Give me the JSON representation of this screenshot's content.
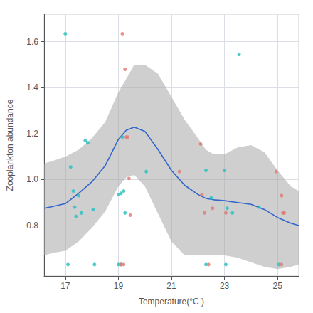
{
  "chart_data": {
    "type": "scatter",
    "xlabel": "Temperature(°C )",
    "ylabel": "Zooplankton abundance",
    "xlim": [
      16.2,
      25.8
    ],
    "ylim": [
      0.58,
      1.72
    ],
    "xticks": [
      17,
      19,
      21,
      23,
      25
    ],
    "yticks": [
      0.8,
      {
        "value": 1.0,
        "label": "1.0"
      },
      1.2,
      1.4,
      1.6
    ],
    "grid": true,
    "series": [
      {
        "type": "band",
        "color": "#a8a8a8",
        "x": [
          16.2,
          16.5,
          17.0,
          17.5,
          18.0,
          18.5,
          19.0,
          19.3,
          19.6,
          20.0,
          20.5,
          21.0,
          21.5,
          22.0,
          22.3,
          22.6,
          23.0,
          23.5,
          24.0,
          24.5,
          25.0,
          25.5,
          25.8
        ],
        "lower": [
          0.67,
          0.68,
          0.69,
          0.73,
          0.79,
          0.86,
          0.97,
          1.01,
          1.02,
          0.97,
          0.85,
          0.73,
          0.67,
          0.67,
          0.67,
          0.67,
          0.67,
          0.66,
          0.64,
          0.62,
          0.61,
          0.62,
          0.63
        ],
        "upper": [
          1.07,
          1.08,
          1.1,
          1.13,
          1.18,
          1.25,
          1.38,
          1.44,
          1.5,
          1.5,
          1.46,
          1.36,
          1.26,
          1.18,
          1.13,
          1.11,
          1.11,
          1.14,
          1.15,
          1.12,
          1.04,
          0.97,
          0.95
        ]
      },
      {
        "type": "line",
        "color": "#3366cc",
        "x": [
          16.2,
          16.5,
          17.0,
          17.5,
          18.0,
          18.5,
          19.0,
          19.3,
          19.6,
          20.0,
          20.5,
          21.0,
          21.5,
          22.0,
          22.3,
          22.6,
          23.0,
          23.5,
          24.0,
          24.5,
          25.0,
          25.5,
          25.8
        ],
        "values": [
          0.875,
          0.882,
          0.895,
          0.94,
          0.99,
          1.06,
          1.175,
          1.215,
          1.228,
          1.21,
          1.13,
          1.04,
          0.975,
          0.935,
          0.918,
          0.912,
          0.908,
          0.9,
          0.892,
          0.87,
          0.835,
          0.81,
          0.8
        ]
      },
      {
        "type": "scatter",
        "color": "#26bfbf",
        "points": [
          [
            17.0,
            1.635
          ],
          [
            17.2,
            1.055
          ],
          [
            17.3,
            0.95
          ],
          [
            17.35,
            0.88
          ],
          [
            17.4,
            0.84
          ],
          [
            17.5,
            0.93
          ],
          [
            17.6,
            0.855
          ],
          [
            17.75,
            1.17
          ],
          [
            17.85,
            1.16
          ],
          [
            18.05,
            0.87
          ],
          [
            19.0,
            0.935
          ],
          [
            19.1,
            0.94
          ],
          [
            19.15,
            1.185
          ],
          [
            19.2,
            0.95
          ],
          [
            19.25,
            0.855
          ],
          [
            20.05,
            1.035
          ],
          [
            22.3,
            1.04
          ],
          [
            22.5,
            0.92
          ],
          [
            23.0,
            1.04
          ],
          [
            23.1,
            0.875
          ],
          [
            23.3,
            0.855
          ],
          [
            24.3,
            0.88
          ],
          [
            23.55,
            1.545
          ],
          [
            17.1,
            0.63
          ],
          [
            18.1,
            0.63
          ],
          [
            19.0,
            0.63
          ],
          [
            19.1,
            0.63
          ],
          [
            22.3,
            0.63
          ],
          [
            23.05,
            0.63
          ],
          [
            25.05,
            0.63
          ]
        ]
      },
      {
        "type": "scatter",
        "color": "#e07870",
        "points": [
          [
            19.15,
            1.635
          ],
          [
            19.25,
            1.48
          ],
          [
            19.3,
            1.185
          ],
          [
            19.35,
            1.185
          ],
          [
            19.4,
            1.005
          ],
          [
            19.45,
            0.845
          ],
          [
            21.3,
            1.035
          ],
          [
            22.1,
            1.155
          ],
          [
            22.15,
            0.935
          ],
          [
            22.25,
            0.855
          ],
          [
            22.55,
            0.875
          ],
          [
            23.05,
            0.855
          ],
          [
            24.95,
            1.035
          ],
          [
            25.15,
            0.93
          ],
          [
            25.2,
            0.855
          ],
          [
            25.25,
            0.855
          ],
          [
            19.1,
            0.63
          ],
          [
            19.2,
            0.63
          ],
          [
            22.4,
            0.63
          ],
          [
            25.15,
            0.63
          ]
        ]
      }
    ]
  }
}
